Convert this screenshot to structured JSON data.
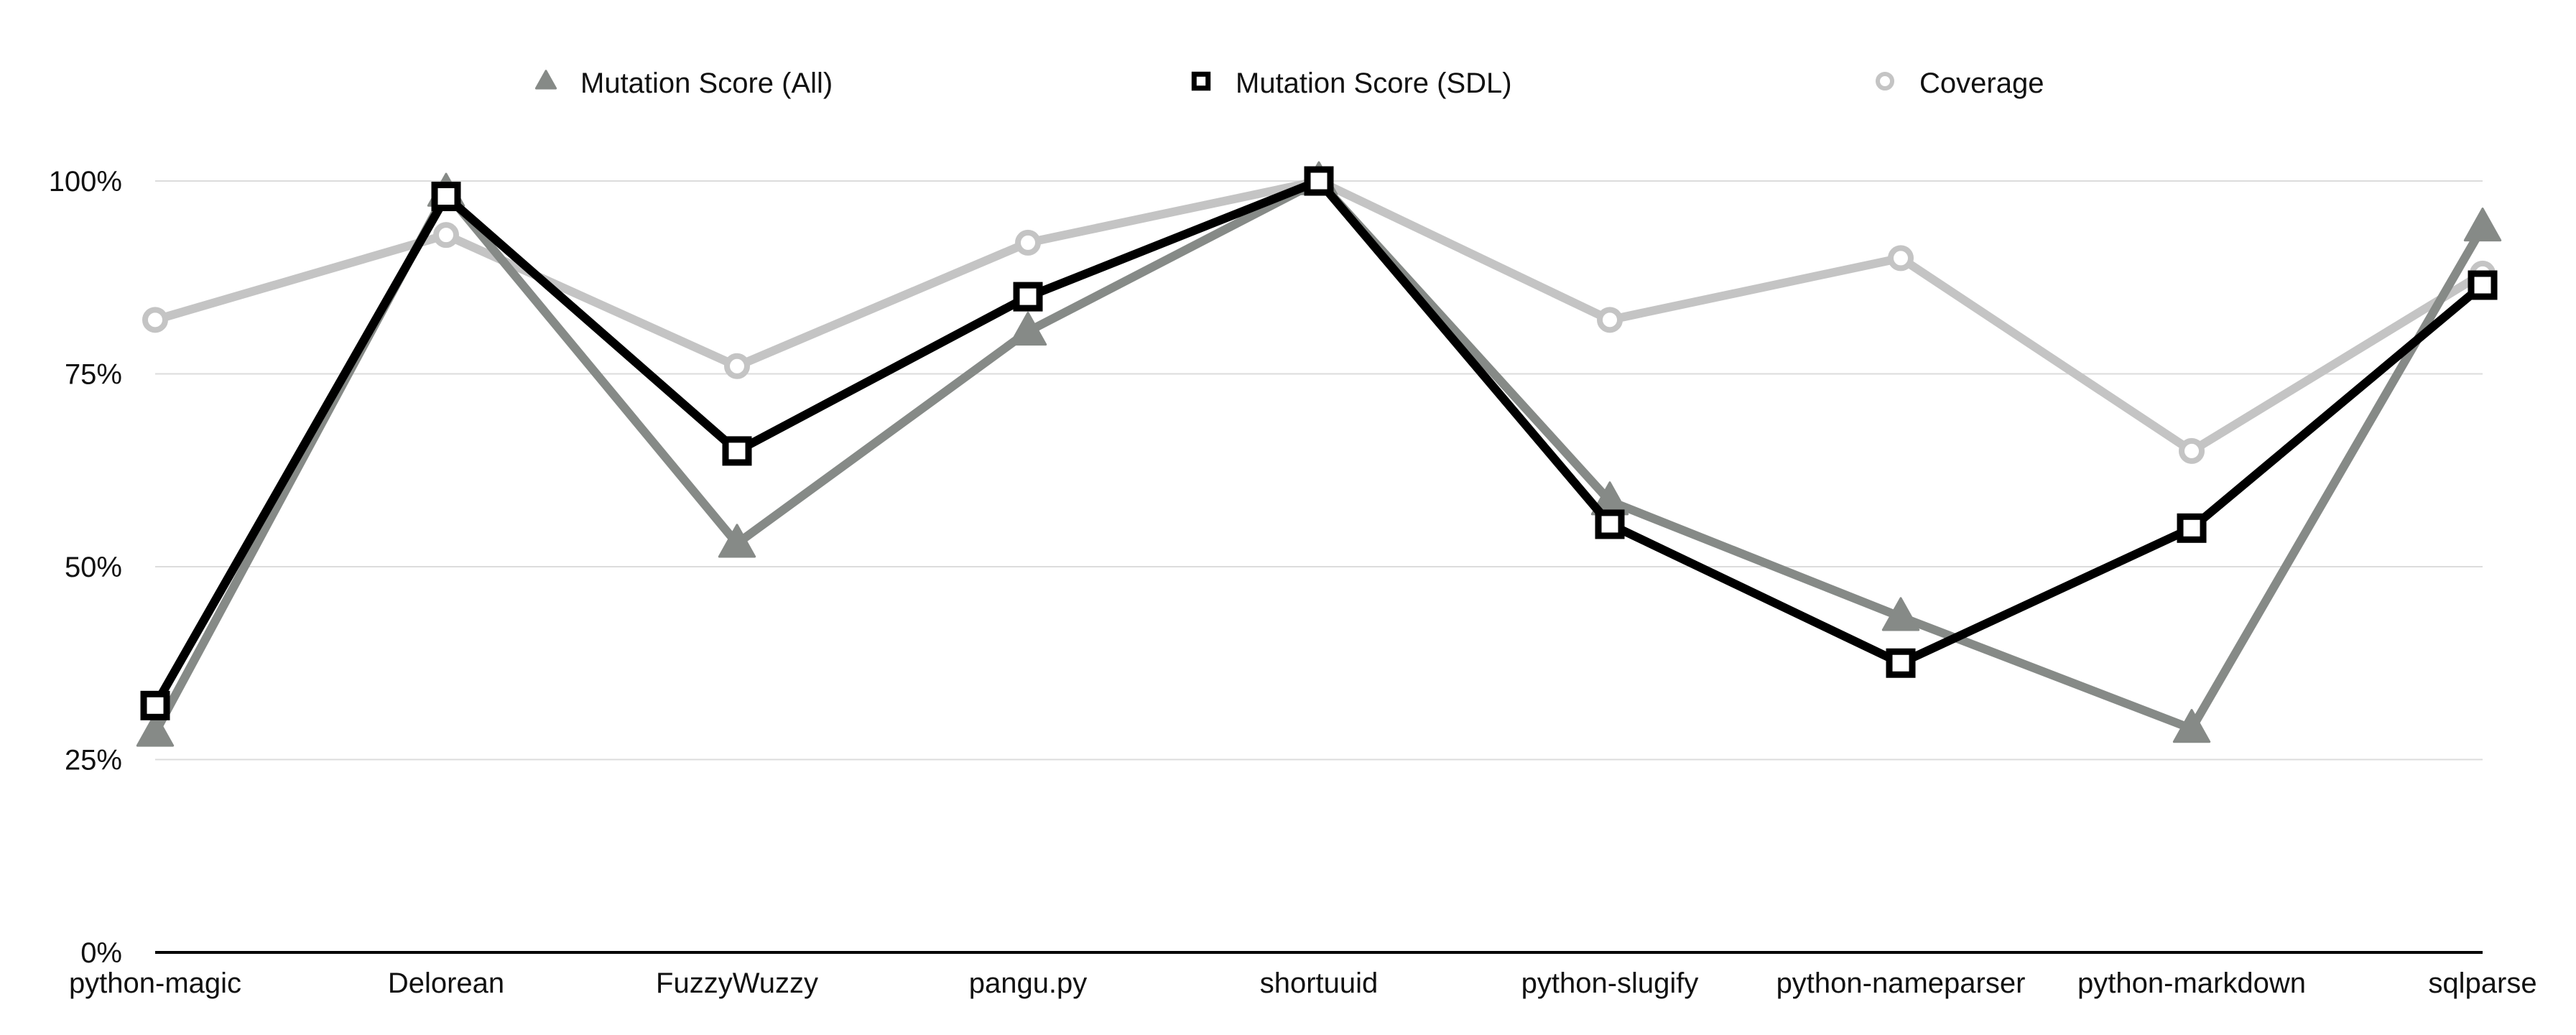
{
  "chart_data": {
    "type": "line",
    "title": "",
    "xlabel": "",
    "ylabel": "",
    "categories": [
      "python-magic",
      "Delorean",
      "FuzzyWuzzy",
      "pangu.py",
      "shortuuid",
      "python-slugify",
      "python-nameparser",
      "python-markdown",
      "sqlparse"
    ],
    "ylim": [
      0,
      100
    ],
    "yticks": [
      0,
      25,
      50,
      75,
      100
    ],
    "ytick_labels": [
      "0%",
      "25%",
      "50%",
      "75%",
      "100%"
    ],
    "grid": true,
    "legend_position": "top",
    "series": [
      {
        "name": "Mutation Score (All)",
        "marker": "triangle",
        "color": "#868a87",
        "values": [
          28.5,
          98.5,
          53,
          80.5,
          100,
          58.5,
          43.5,
          29,
          94
        ]
      },
      {
        "name": "Mutation Score (SDL)",
        "marker": "square",
        "color": "#000000",
        "values": [
          32,
          98,
          65,
          85,
          100,
          55.5,
          37.5,
          55,
          86.5
        ]
      },
      {
        "name": "Coverage",
        "marker": "circle",
        "color": "#c4c4c4",
        "values": [
          82,
          93,
          76,
          92,
          100,
          82,
          90,
          65,
          88
        ]
      }
    ]
  }
}
